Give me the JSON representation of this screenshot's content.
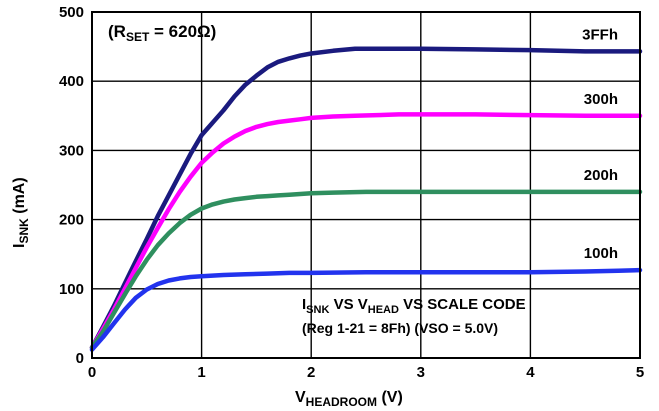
{
  "chart_data": {
    "type": "line",
    "title": "",
    "xlabel": {
      "main": "V",
      "sub": "HEADROOM",
      "tail": " (V)"
    },
    "ylabel": {
      "main": "I",
      "sub": "SNK",
      "tail": " (mA)"
    },
    "xlim": [
      0,
      5
    ],
    "ylim": [
      0,
      500
    ],
    "xticks": [
      "0",
      "1",
      "2",
      "3",
      "4",
      "5"
    ],
    "yticks": [
      "0",
      "100",
      "200",
      "300",
      "400",
      "500"
    ],
    "grid": true,
    "rset_label": {
      "open": "(R",
      "sub": "SET",
      "tail": " = 620Ω)"
    },
    "annotation": {
      "line1": {
        "i": "I",
        "isub": "SNK",
        "vs1": " VS V",
        "vsub": "HEAD",
        "rest": " VS SCALE CODE"
      },
      "line2": "(Reg 1-21 = 8Fh) (VSO = 5.0V)"
    },
    "series": [
      {
        "name": "3FFh",
        "color": "#1a1a7e",
        "x": [
          0,
          0.1,
          0.2,
          0.3,
          0.4,
          0.5,
          0.6,
          0.7,
          0.8,
          0.9,
          1.0,
          1.1,
          1.2,
          1.3,
          1.4,
          1.5,
          1.6,
          1.7,
          1.8,
          1.9,
          2.0,
          2.2,
          2.4,
          2.6,
          2.8,
          3.0,
          3.5,
          4.0,
          4.5,
          5.0
        ],
        "y": [
          15,
          45,
          75,
          108,
          140,
          172,
          205,
          235,
          265,
          295,
          322,
          340,
          358,
          378,
          395,
          408,
          420,
          428,
          433,
          437,
          440,
          444,
          447,
          447,
          447,
          447,
          446,
          445,
          443,
          443
        ]
      },
      {
        "name": "300h",
        "color": "#ff00ff",
        "x": [
          0,
          0.1,
          0.2,
          0.3,
          0.4,
          0.5,
          0.6,
          0.7,
          0.8,
          0.9,
          1.0,
          1.1,
          1.2,
          1.3,
          1.4,
          1.5,
          1.6,
          1.7,
          1.8,
          1.9,
          2.0,
          2.2,
          2.4,
          2.6,
          2.8,
          3.0,
          3.5,
          4.0,
          4.5,
          5.0
        ],
        "y": [
          15,
          42,
          70,
          100,
          130,
          160,
          188,
          215,
          240,
          262,
          282,
          297,
          310,
          320,
          328,
          334,
          338,
          341,
          343,
          345,
          347,
          349,
          350,
          351,
          352,
          352,
          352,
          351,
          350,
          350
        ]
      },
      {
        "name": "200h",
        "color": "#2f8f5f",
        "x": [
          0,
          0.1,
          0.2,
          0.3,
          0.4,
          0.5,
          0.6,
          0.7,
          0.8,
          0.9,
          1.0,
          1.1,
          1.2,
          1.3,
          1.4,
          1.5,
          1.6,
          1.7,
          1.8,
          1.9,
          2.0,
          2.2,
          2.5,
          3.0,
          3.5,
          4.0,
          4.5,
          5.0
        ],
        "y": [
          15,
          38,
          65,
          92,
          118,
          142,
          163,
          180,
          195,
          207,
          216,
          222,
          226,
          229,
          231,
          233,
          234,
          235,
          236,
          237,
          238,
          239,
          240,
          240,
          240,
          240,
          240,
          240
        ]
      },
      {
        "name": "100h",
        "color": "#2233ee",
        "x": [
          0,
          0.1,
          0.2,
          0.3,
          0.4,
          0.5,
          0.6,
          0.7,
          0.8,
          0.9,
          1.0,
          1.2,
          1.4,
          1.6,
          1.8,
          2.0,
          2.5,
          3.0,
          3.5,
          4.0,
          4.5,
          4.8,
          5.0
        ],
        "y": [
          12,
          30,
          50,
          70,
          87,
          99,
          107,
          112,
          115,
          117,
          118,
          120,
          121,
          122,
          123,
          123,
          124,
          124,
          124,
          124,
          125,
          126,
          127
        ]
      }
    ]
  }
}
